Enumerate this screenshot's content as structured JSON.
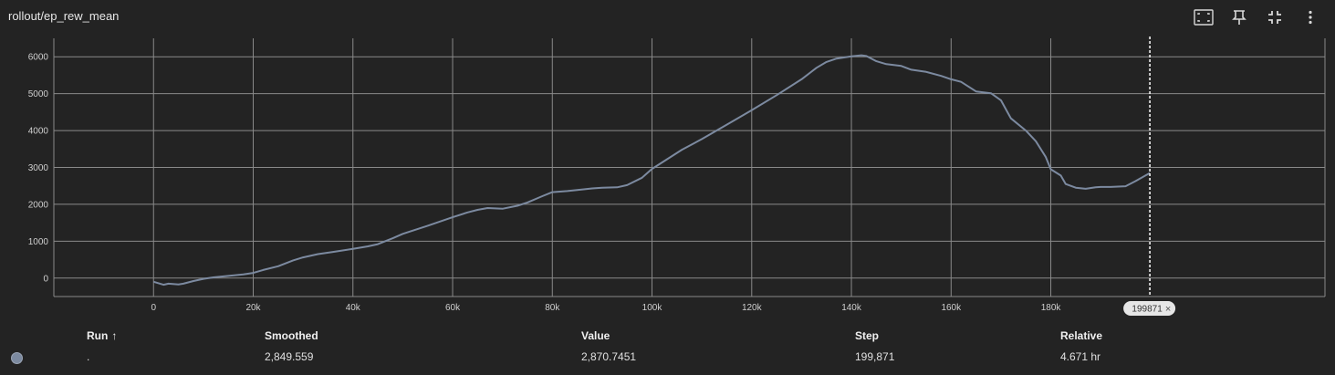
{
  "title": "rollout/ep_rew_mean",
  "toolbar": {
    "icons": [
      "fit-domain-icon",
      "pin-icon",
      "collapse-icon",
      "more-vert-icon"
    ]
  },
  "colors": {
    "background": "#232323",
    "grid": "#8a8a8a",
    "line": "#7c8aa0",
    "cursor": "#ffffff"
  },
  "chart_data": {
    "type": "line",
    "title": "rollout/ep_rew_mean",
    "xlabel": "",
    "ylabel": "",
    "xlim": [
      -20000,
      235000
    ],
    "ylim": [
      -500,
      6500
    ],
    "xticks": [
      0,
      20000,
      40000,
      60000,
      80000,
      100000,
      120000,
      140000,
      160000,
      180000
    ],
    "xtick_labels": [
      "0",
      "20k",
      "40k",
      "60k",
      "80k",
      "100k",
      "120k",
      "140k",
      "160k",
      "180k"
    ],
    "yticks": [
      0,
      1000,
      2000,
      3000,
      4000,
      5000,
      6000
    ],
    "ytick_labels": [
      "0",
      "1000",
      "2000",
      "3000",
      "4000",
      "5000",
      "6000"
    ],
    "grid": true,
    "cursor_step": 199871,
    "cursor_label": "199871",
    "series": [
      {
        "x": [
          0,
          2000,
          3000,
          5000,
          6000,
          8000,
          10000,
          12000,
          15000,
          18000,
          20000,
          22000,
          25000,
          28000,
          30000,
          33000,
          36000,
          40000,
          43000,
          45000,
          48000,
          50000,
          55000,
          60000,
          63000,
          65000,
          67000,
          70000,
          73000,
          75000,
          78000,
          80000,
          83000,
          85000,
          88000,
          90000,
          93000,
          95000,
          98000,
          100000,
          103000,
          106000,
          110000,
          115000,
          120000,
          125000,
          130000,
          133000,
          135000,
          137000,
          140000,
          142000,
          143000,
          145000,
          147000,
          150000,
          152000,
          155000,
          158000,
          160000,
          162000,
          165000,
          168000,
          170000,
          172000,
          175000,
          177000,
          179000,
          180000,
          182000,
          183000,
          185000,
          187000,
          189000,
          190000,
          192000,
          195000,
          197000,
          199871
        ],
        "values": [
          -100,
          -180,
          -150,
          -170,
          -150,
          -80,
          -20,
          20,
          60,
          100,
          140,
          220,
          320,
          480,
          560,
          650,
          710,
          790,
          860,
          920,
          1080,
          1200,
          1420,
          1650,
          1780,
          1850,
          1900,
          1880,
          1960,
          2050,
          2220,
          2330,
          2360,
          2390,
          2430,
          2450,
          2460,
          2520,
          2720,
          2960,
          3220,
          3480,
          3770,
          4160,
          4550,
          4960,
          5390,
          5700,
          5860,
          5950,
          6010,
          6040,
          6020,
          5880,
          5800,
          5750,
          5650,
          5590,
          5480,
          5390,
          5320,
          5060,
          5010,
          4820,
          4330,
          4000,
          3710,
          3280,
          2950,
          2780,
          2550,
          2450,
          2420,
          2460,
          2470,
          2470,
          2490,
          2630,
          2849.559
        ]
      }
    ]
  },
  "table": {
    "headers": {
      "run": "Run",
      "run_sort": "↑",
      "smoothed": "Smoothed",
      "value": "Value",
      "step": "Step",
      "relative": "Relative"
    },
    "rows": [
      {
        "run": ".",
        "smoothed": "2,849.559",
        "value": "2,870.7451",
        "step": "199,871",
        "relative": "4.671 hr"
      }
    ]
  }
}
